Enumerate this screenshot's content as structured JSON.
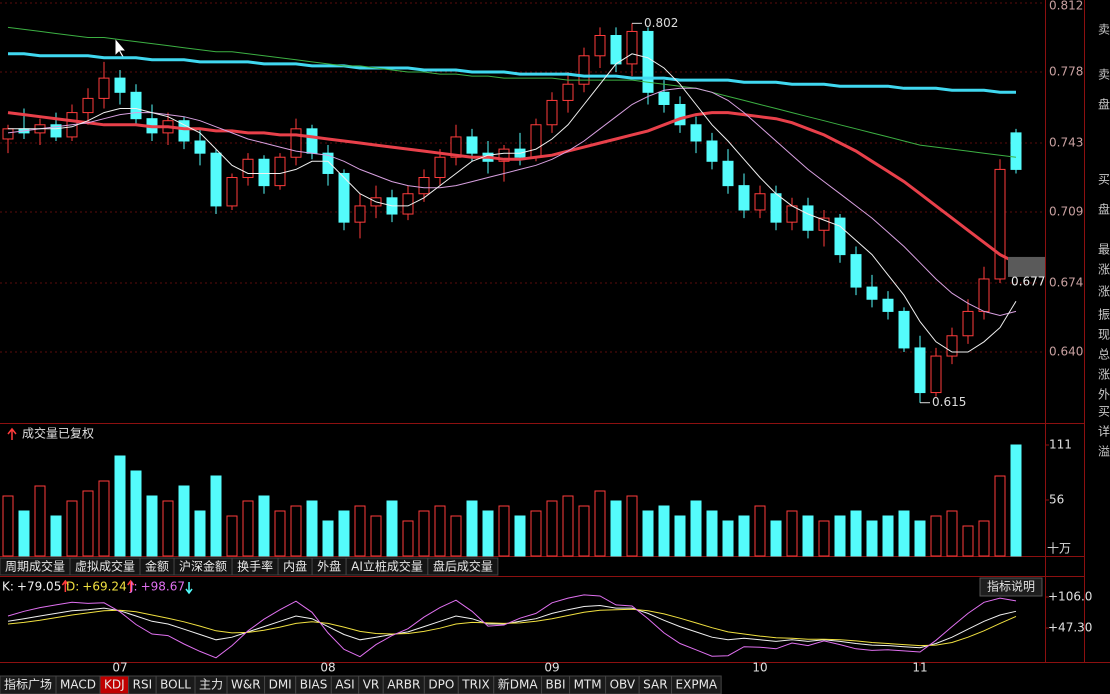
{
  "chart_data": [
    {
      "type": "candlestick",
      "up_color": "#ff3c3c",
      "down_color": "#54fcfc",
      "grid": true,
      "ylim": [
        0.605,
        0.8135
      ],
      "yticks": [
        0.812,
        0.778,
        0.743,
        0.709,
        0.674,
        {
          "value": 0.64,
          "label": "0.640"
        }
      ],
      "open": [
        0.745,
        0.75,
        0.748,
        0.752,
        0.746,
        0.758,
        0.765,
        0.775,
        0.768,
        0.755,
        0.748,
        0.754,
        0.744,
        0.738,
        0.712,
        0.726,
        0.735,
        0.722,
        0.736,
        0.75,
        0.738,
        0.728,
        0.704,
        0.712,
        0.716,
        0.708,
        0.718,
        0.726,
        0.736,
        0.746,
        0.738,
        0.734,
        0.74,
        0.736,
        0.752,
        0.764,
        0.772,
        0.786,
        0.796,
        0.782,
        0.798,
        0.768,
        0.762,
        0.752,
        0.744,
        0.734,
        0.722,
        0.71,
        0.718,
        0.704,
        0.712,
        0.7,
        0.706,
        0.688,
        0.672,
        0.666,
        0.66,
        0.642,
        0.62,
        0.638,
        0.648,
        0.66,
        0.676,
        0.748
      ],
      "high": [
        0.752,
        0.76,
        0.755,
        0.758,
        0.762,
        0.77,
        0.783,
        0.779,
        0.772,
        0.762,
        0.758,
        0.756,
        0.75,
        0.74,
        0.728,
        0.738,
        0.737,
        0.738,
        0.755,
        0.752,
        0.742,
        0.73,
        0.718,
        0.722,
        0.72,
        0.722,
        0.73,
        0.74,
        0.752,
        0.75,
        0.744,
        0.742,
        0.748,
        0.755,
        0.768,
        0.778,
        0.79,
        0.8,
        0.8,
        0.802,
        0.8,
        0.774,
        0.766,
        0.756,
        0.748,
        0.74,
        0.728,
        0.722,
        0.722,
        0.716,
        0.716,
        0.71,
        0.708,
        0.692,
        0.678,
        0.67,
        0.662,
        0.648,
        0.642,
        0.652,
        0.666,
        0.682,
        0.735,
        0.75
      ],
      "low": [
        0.738,
        0.745,
        0.742,
        0.744,
        0.744,
        0.752,
        0.76,
        0.762,
        0.752,
        0.744,
        0.742,
        0.74,
        0.732,
        0.708,
        0.71,
        0.722,
        0.718,
        0.72,
        0.732,
        0.735,
        0.722,
        0.7,
        0.696,
        0.706,
        0.704,
        0.705,
        0.714,
        0.722,
        0.732,
        0.734,
        0.728,
        0.724,
        0.732,
        0.734,
        0.748,
        0.758,
        0.768,
        0.78,
        0.778,
        0.776,
        0.762,
        0.758,
        0.748,
        0.738,
        0.73,
        0.718,
        0.706,
        0.706,
        0.7,
        0.7,
        0.696,
        0.692,
        0.684,
        0.668,
        0.662,
        0.656,
        0.64,
        0.615,
        0.618,
        0.634,
        0.644,
        0.656,
        0.674,
        0.728
      ],
      "close": [
        0.75,
        0.748,
        0.752,
        0.746,
        0.758,
        0.765,
        0.775,
        0.768,
        0.755,
        0.748,
        0.754,
        0.744,
        0.738,
        0.712,
        0.726,
        0.735,
        0.722,
        0.736,
        0.75,
        0.738,
        0.728,
        0.704,
        0.712,
        0.716,
        0.708,
        0.718,
        0.726,
        0.736,
        0.746,
        0.738,
        0.734,
        0.74,
        0.736,
        0.752,
        0.764,
        0.772,
        0.786,
        0.796,
        0.782,
        0.798,
        0.768,
        0.762,
        0.752,
        0.744,
        0.734,
        0.722,
        0.71,
        0.718,
        0.704,
        0.712,
        0.7,
        0.706,
        0.688,
        0.672,
        0.666,
        0.66,
        0.642,
        0.62,
        0.638,
        0.648,
        0.66,
        0.676,
        0.73,
        0.73
      ],
      "moving_averages": [
        {
          "color": "#40d8f0",
          "width": 3,
          "values": [
            0.787,
            0.787,
            0.786,
            0.786,
            0.786,
            0.786,
            0.785,
            0.785,
            0.785,
            0.784,
            0.784,
            0.784,
            0.783,
            0.783,
            0.783,
            0.783,
            0.782,
            0.782,
            0.782,
            0.781,
            0.781,
            0.781,
            0.78,
            0.78,
            0.78,
            0.78,
            0.779,
            0.779,
            0.779,
            0.778,
            0.778,
            0.778,
            0.777,
            0.777,
            0.777,
            0.777,
            0.776,
            0.776,
            0.776,
            0.775,
            0.775,
            0.775,
            0.774,
            0.774,
            0.774,
            0.774,
            0.773,
            0.773,
            0.773,
            0.772,
            0.772,
            0.772,
            0.771,
            0.771,
            0.771,
            0.771,
            0.77,
            0.77,
            0.77,
            0.769,
            0.769,
            0.769,
            0.768,
            0.768
          ]
        },
        {
          "color": "#3cb043",
          "width": 1,
          "values": [
            0.8,
            0.799,
            0.798,
            0.797,
            0.796,
            0.795,
            0.795,
            0.794,
            0.793,
            0.792,
            0.791,
            0.79,
            0.789,
            0.788,
            0.788,
            0.787,
            0.786,
            0.785,
            0.784,
            0.783,
            0.782,
            0.781,
            0.781,
            0.78,
            0.779,
            0.778,
            0.778,
            0.777,
            0.777,
            0.776,
            0.776,
            0.775,
            0.775,
            0.775,
            0.775,
            0.774,
            0.774,
            0.774,
            0.774,
            0.774,
            0.773,
            0.772,
            0.771,
            0.77,
            0.768,
            0.766,
            0.764,
            0.762,
            0.76,
            0.758,
            0.756,
            0.754,
            0.752,
            0.75,
            0.748,
            0.746,
            0.744,
            0.742,
            0.741,
            0.74,
            0.739,
            0.738,
            0.737,
            0.736
          ]
        },
        {
          "color": "#e8404a",
          "width": 3,
          "values": [
            0.758,
            0.757,
            0.756,
            0.755,
            0.754,
            0.753,
            0.752,
            0.752,
            0.752,
            0.751,
            0.751,
            0.75,
            0.75,
            0.749,
            0.749,
            0.748,
            0.748,
            0.747,
            0.747,
            0.746,
            0.745,
            0.744,
            0.743,
            0.742,
            0.741,
            0.74,
            0.739,
            0.738,
            0.737,
            0.736,
            0.736,
            0.735,
            0.735,
            0.736,
            0.737,
            0.739,
            0.741,
            0.743,
            0.745,
            0.747,
            0.749,
            0.752,
            0.755,
            0.757,
            0.758,
            0.758,
            0.757,
            0.756,
            0.755,
            0.753,
            0.75,
            0.747,
            0.743,
            0.739,
            0.734,
            0.729,
            0.724,
            0.718,
            0.712,
            0.706,
            0.7,
            0.694,
            0.688,
            0.684
          ]
        },
        {
          "color": "#d8a0e0",
          "width": 1,
          "values": [
            0.748,
            0.749,
            0.75,
            0.751,
            0.752,
            0.753,
            0.755,
            0.757,
            0.758,
            0.758,
            0.757,
            0.756,
            0.754,
            0.751,
            0.748,
            0.745,
            0.743,
            0.741,
            0.739,
            0.738,
            0.737,
            0.734,
            0.73,
            0.727,
            0.724,
            0.722,
            0.721,
            0.721,
            0.722,
            0.724,
            0.726,
            0.728,
            0.73,
            0.732,
            0.735,
            0.739,
            0.744,
            0.75,
            0.756,
            0.762,
            0.766,
            0.769,
            0.77,
            0.77,
            0.768,
            0.764,
            0.758,
            0.751,
            0.744,
            0.737,
            0.73,
            0.724,
            0.718,
            0.712,
            0.706,
            0.699,
            0.692,
            0.684,
            0.676,
            0.669,
            0.664,
            0.66,
            0.658,
            0.66
          ]
        },
        {
          "color": "#f0f0f0",
          "width": 1,
          "values": [
            0.75,
            0.75,
            0.75,
            0.75,
            0.751,
            0.754,
            0.758,
            0.76,
            0.76,
            0.758,
            0.756,
            0.752,
            0.748,
            0.74,
            0.732,
            0.728,
            0.728,
            0.728,
            0.73,
            0.734,
            0.734,
            0.726,
            0.718,
            0.714,
            0.712,
            0.712,
            0.716,
            0.722,
            0.728,
            0.734,
            0.737,
            0.738,
            0.738,
            0.74,
            0.745,
            0.752,
            0.762,
            0.772,
            0.782,
            0.787,
            0.785,
            0.78,
            0.772,
            0.762,
            0.752,
            0.744,
            0.735,
            0.726,
            0.718,
            0.712,
            0.708,
            0.705,
            0.702,
            0.695,
            0.688,
            0.678,
            0.668,
            0.655,
            0.645,
            0.64,
            0.64,
            0.645,
            0.652,
            0.665
          ]
        }
      ],
      "cursor": 0.677
    },
    {
      "type": "bar",
      "title": "成交量已复权",
      "unit": "十万",
      "ylim": [
        0,
        131
      ],
      "yticks": [
        56,
        111
      ],
      "values": [
        60,
        45,
        70,
        40,
        55,
        65,
        75,
        100,
        85,
        60,
        55,
        70,
        45,
        80,
        40,
        55,
        60,
        45,
        50,
        55,
        35,
        45,
        50,
        40,
        55,
        35,
        45,
        50,
        40,
        55,
        45,
        50,
        40,
        45,
        55,
        60,
        50,
        65,
        55,
        60,
        45,
        50,
        40,
        55,
        45,
        35,
        40,
        50,
        35,
        45,
        40,
        35,
        40,
        45,
        35,
        40,
        45,
        35,
        40,
        45,
        30,
        35,
        80,
        111
      ]
    },
    {
      "type": "line",
      "button": "指标说明",
      "ylim": [
        -17,
        142
      ],
      "yticks": [
        {
          "value": 106.0,
          "label": "+106.0"
        },
        {
          "value": 47.3,
          "label": "+47.30"
        }
      ],
      "categories": [
        null,
        null,
        null,
        null,
        null,
        null,
        null,
        "07",
        null,
        null,
        null,
        null,
        null,
        null,
        null,
        null,
        null,
        null,
        null,
        null,
        "08",
        null,
        null,
        null,
        null,
        null,
        null,
        null,
        null,
        null,
        null,
        null,
        null,
        null,
        "09",
        null,
        null,
        null,
        null,
        null,
        null,
        null,
        null,
        null,
        null,
        null,
        null,
        "10",
        null,
        null,
        null,
        null,
        null,
        null,
        null,
        null,
        null,
        "11",
        null,
        null,
        null,
        null,
        null,
        null
      ],
      "series": [
        {
          "name": "K:",
          "color": "#f0f0f0",
          "current": {
            "value": 79.05,
            "label": "+79.05"
          },
          "values": [
            60,
            65,
            70,
            75,
            80,
            82,
            85,
            80,
            70,
            60,
            55,
            45,
            35,
            25,
            30,
            40,
            50,
            60,
            70,
            65,
            50,
            35,
            25,
            30,
            35,
            40,
            50,
            60,
            70,
            65,
            55,
            55,
            60,
            65,
            75,
            82,
            88,
            90,
            85,
            85,
            75,
            62,
            50,
            40,
            30,
            25,
            28,
            25,
            22,
            25,
            22,
            25,
            22,
            18,
            15,
            14,
            12,
            10,
            18,
            30,
            45,
            60,
            72,
            79.05
          ]
        },
        {
          "name": "D:",
          "color": "#f0e040",
          "current": {
            "value": 69.24,
            "label": "+69.24"
          },
          "values": [
            55,
            58,
            62,
            67,
            72,
            76,
            80,
            81,
            78,
            72,
            66,
            59,
            51,
            42,
            38,
            39,
            43,
            49,
            56,
            59,
            56,
            49,
            41,
            37,
            36,
            37,
            41,
            47,
            55,
            58,
            57,
            56,
            57,
            60,
            65,
            71,
            77,
            81,
            82,
            83,
            80,
            74,
            66,
            57,
            48,
            40,
            36,
            32,
            29,
            28,
            26,
            26,
            25,
            23,
            20,
            18,
            16,
            14,
            15,
            20,
            30,
            42,
            56,
            69.24
          ]
        },
        {
          "name": "J:",
          "color": "#e070f0",
          "current": {
            "value": 98.67,
            "label": "+98.67"
          },
          "values": [
            70,
            79,
            86,
            91,
            96,
            94,
            95,
            78,
            54,
            36,
            33,
            17,
            3,
            -9,
            14,
            42,
            64,
            82,
            98,
            77,
            38,
            7,
            -7,
            16,
            33,
            46,
            68,
            86,
            100,
            79,
            51,
            53,
            66,
            75,
            95,
            104,
            110,
            108,
            91,
            89,
            65,
            38,
            18,
            6,
            -6,
            -5,
            12,
            11,
            8,
            19,
            14,
            23,
            16,
            8,
            5,
            6,
            4,
            2,
            24,
            50,
            75,
            96,
            104,
            98.67
          ]
        }
      ]
    }
  ],
  "volume_tabs": [
    "周期成交量",
    "虚拟成交量",
    "金额",
    "沪深金额",
    "换手率",
    "内盘",
    "外盘",
    "AI立桩成交量",
    "盘后成交量"
  ],
  "indicator_tabs": {
    "active": "KDJ",
    "items": [
      "指标广场",
      "MACD",
      "KDJ",
      "RSI",
      "BOLL",
      "主力",
      "W&R",
      "DMI",
      "BIAS",
      "ASI",
      "VR",
      "ARBR",
      "DPO",
      "TRIX",
      "新DMA",
      "BBI",
      "MTM",
      "OBV",
      "SAR",
      "EXPMA"
    ]
  },
  "side_panel": [
    "卖",
    "卖",
    "盘",
    "买",
    "盘",
    "最",
    "涨",
    "涨",
    "振",
    "现",
    "总",
    "涨",
    "外",
    "买",
    "详",
    "溢"
  ]
}
